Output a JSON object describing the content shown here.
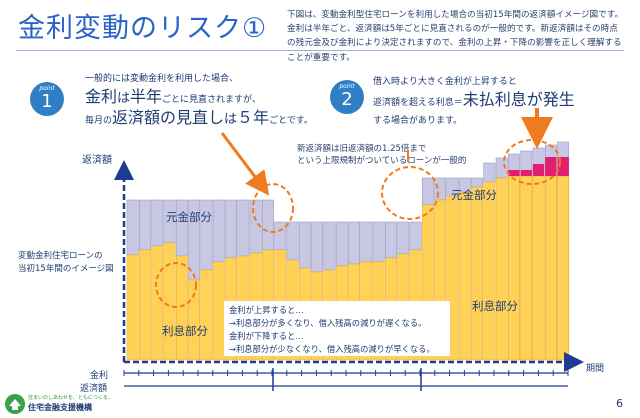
{
  "header": {
    "title": "金利変動のリスク①",
    "intro_lines": [
      "下図は、変動金利型住宅ローンを利用した場合の当初15年間の返済額イメージ図です。",
      "金利は半年ごと、返済額は5年ごとに見直されるのが一般的です。新返済額はその時点",
      "の残元金及び金利により決定されますので、金利の上昇・下降の影響を正しく理解する",
      "ことが重要です。"
    ]
  },
  "point1": {
    "badge_word": "point",
    "badge_number": "1",
    "line1": "一般的には変動金利を利用した場合、",
    "line2_a": "金利",
    "line2_b": "は",
    "line2_c": "半年",
    "line2_d": "ごとに見直されますが、",
    "line3_a": "毎月の",
    "line3_b": "返済額の見直し",
    "line3_c": "は",
    "line3_d": "５年",
    "line3_e": "ごとです。"
  },
  "point2": {
    "badge_word": "point",
    "badge_number": "2",
    "line1": "借入時より大きく金利が上昇すると",
    "line2_a": "返済額を超える利息＝",
    "line2_b": "未払利息が発生",
    "line3": "する場合があります。"
  },
  "note": {
    "line1": "新返済額は旧返済額の1.25倍まで",
    "line2": "という上限規制がついているローンが一般的"
  },
  "diagram": {
    "y_axis_label": "返済額",
    "x_axis_label": "期間",
    "side_label_line1": "変動金利住宅ローンの",
    "side_label_line2": "当初15年間のイメージ図",
    "principal_label_left": "元金部分",
    "principal_label_right": "元金部分",
    "interest_label_left": "利息部分",
    "interest_label_right": "利息部分",
    "legend_rate": "金利",
    "legend_payment": "返済額",
    "colors": {
      "principal": "#c8c8e4",
      "interest": "#ffd257",
      "unpaid": "#e0206e",
      "axis": "#1f3a93",
      "circle": "#f07a1e"
    }
  },
  "callout": {
    "line1": "金利が上昇すると…",
    "line2": "→利息部分が多くなり、借入残高の減りが遅くなる。",
    "line3": "金利が下降すると…",
    "line4": "→利息部分が少なくなり、借入残高の減りが早くなる。"
  },
  "footer": {
    "logo_tagline": "住まいのしあわせを、ともにつくる。",
    "logo_name": "住宅金融支援機構",
    "page_number": "6"
  }
}
